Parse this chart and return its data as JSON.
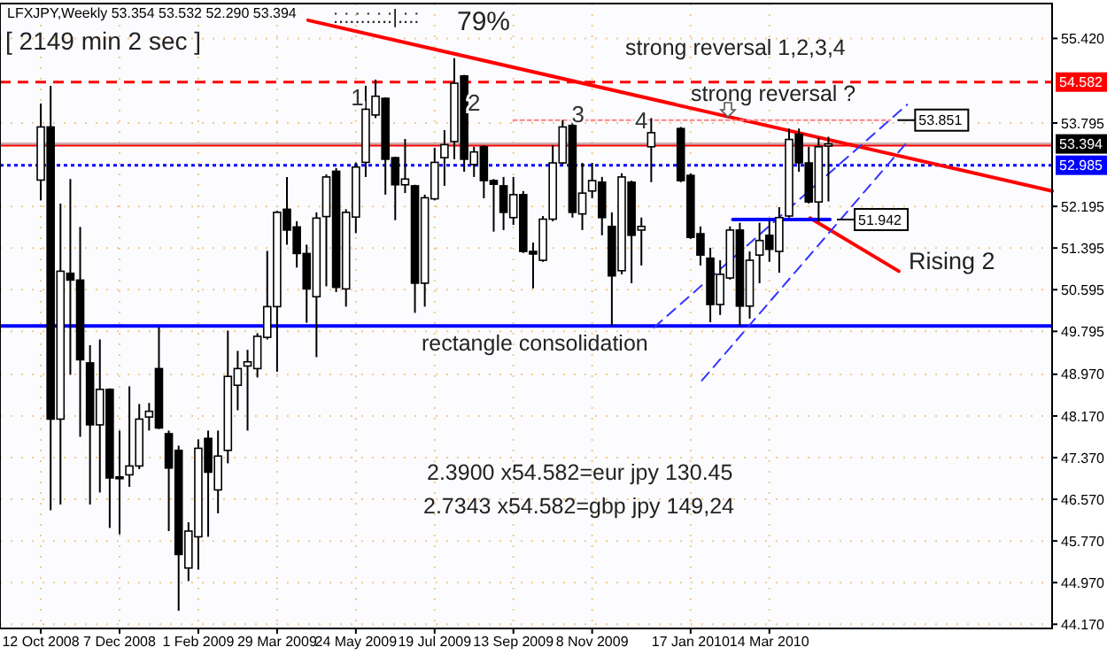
{
  "chart_data": {
    "type": "candlestick",
    "title": "LFXJPY,Weekly  53.354 53.532 52.290 53.394",
    "x": [
      "2008-10-12",
      "2008-10-19",
      "2008-10-26",
      "2008-11-02",
      "2008-11-09",
      "2008-11-16",
      "2008-11-23",
      "2008-11-30",
      "2008-12-07",
      "2008-12-14",
      "2008-12-21",
      "2008-12-28",
      "2009-01-04",
      "2009-01-11",
      "2009-01-18",
      "2009-01-25",
      "2009-02-01",
      "2009-02-08",
      "2009-02-15",
      "2009-02-22",
      "2009-03-01",
      "2009-03-08",
      "2009-03-15",
      "2009-03-22",
      "2009-03-29",
      "2009-04-05",
      "2009-04-12",
      "2009-04-19",
      "2009-04-26",
      "2009-05-03",
      "2009-05-10",
      "2009-05-17",
      "2009-05-24",
      "2009-05-31",
      "2009-06-07",
      "2009-06-14",
      "2009-06-21",
      "2009-06-28",
      "2009-07-05",
      "2009-07-12",
      "2009-07-19",
      "2009-07-26",
      "2009-08-02",
      "2009-08-09",
      "2009-08-16",
      "2009-08-23",
      "2009-08-30",
      "2009-09-06",
      "2009-09-13",
      "2009-09-20",
      "2009-09-27",
      "2009-10-04",
      "2009-10-11",
      "2009-10-18",
      "2009-10-25",
      "2009-11-01",
      "2009-11-08",
      "2009-11-15",
      "2009-11-22",
      "2009-11-29",
      "2009-12-06",
      "2009-12-13",
      "2009-12-20",
      "2010-01-10",
      "2010-01-17",
      "2010-01-24",
      "2010-01-31",
      "2010-02-07",
      "2010-02-14",
      "2010-02-21",
      "2010-02-28",
      "2010-03-07",
      "2010-03-14",
      "2010-03-21",
      "2010-03-28",
      "2010-04-04",
      "2010-04-11",
      "2010-04-18",
      "2010-04-25"
    ],
    "ohlc": [
      [
        52.7,
        54.17,
        52.31,
        53.72
      ],
      [
        53.72,
        54.51,
        46.36,
        48.11
      ],
      [
        48.11,
        52.25,
        46.47,
        50.95
      ],
      [
        50.91,
        52.72,
        48.96,
        50.78
      ],
      [
        50.78,
        51.8,
        47.77,
        49.25
      ],
      [
        49.19,
        49.53,
        46.47,
        48.0
      ],
      [
        48.0,
        49.64,
        46.7,
        48.68
      ],
      [
        48.68,
        48.7,
        46.02,
        46.98
      ],
      [
        47.0,
        47.89,
        45.9,
        46.98
      ],
      [
        47.04,
        48.74,
        46.81,
        47.21
      ],
      [
        47.21,
        48.4,
        47.15,
        48.11
      ],
      [
        48.15,
        48.42,
        47.89,
        48.26
      ],
      [
        49.08,
        49.87,
        47.92,
        47.94
      ],
      [
        47.83,
        47.89,
        45.96,
        47.17
      ],
      [
        47.51,
        47.6,
        44.43,
        45.51
      ],
      [
        45.25,
        46.13,
        45.0,
        45.96
      ],
      [
        45.85,
        47.72,
        45.22,
        47.55
      ],
      [
        47.74,
        47.89,
        45.85,
        47.09
      ],
      [
        46.75,
        47.89,
        46.3,
        47.4
      ],
      [
        47.51,
        49.81,
        47.26,
        48.93
      ],
      [
        48.76,
        49.42,
        48.28,
        49.08
      ],
      [
        49.13,
        49.44,
        47.89,
        49.21
      ],
      [
        49.08,
        49.76,
        48.91,
        49.7
      ],
      [
        49.68,
        51.34,
        49.64,
        50.27
      ],
      [
        50.27,
        52.11,
        49.02,
        52.08
      ],
      [
        52.14,
        52.76,
        51.46,
        51.74
      ],
      [
        51.8,
        51.91,
        51.02,
        51.29
      ],
      [
        51.29,
        51.46,
        49.96,
        50.61
      ],
      [
        50.46,
        52.08,
        49.3,
        51.97
      ],
      [
        52.0,
        52.81,
        50.66,
        52.76
      ],
      [
        52.87,
        52.93,
        50.55,
        50.64
      ],
      [
        50.61,
        52.14,
        50.27,
        52.08
      ],
      [
        51.99,
        53.04,
        51.68,
        52.95
      ],
      [
        53.04,
        54.51,
        52.76,
        54.06
      ],
      [
        53.95,
        54.63,
        53.89,
        54.31
      ],
      [
        54.27,
        54.29,
        52.42,
        53.1
      ],
      [
        53.13,
        53.15,
        51.93,
        52.61
      ],
      [
        52.61,
        53.49,
        52.45,
        52.72
      ],
      [
        52.59,
        52.61,
        50.15,
        50.72
      ],
      [
        50.72,
        52.42,
        50.27,
        52.36
      ],
      [
        52.34,
        53.32,
        52.31,
        53.04
      ],
      [
        53.13,
        53.66,
        52.59,
        53.38
      ],
      [
        53.44,
        55.04,
        53.1,
        54.56
      ],
      [
        54.7,
        54.72,
        52.86,
        53.1
      ],
      [
        53.0,
        53.34,
        52.76,
        53.24
      ],
      [
        53.34,
        53.37,
        52.35,
        52.69
      ],
      [
        52.69,
        52.72,
        51.71,
        52.62
      ],
      [
        52.59,
        52.76,
        51.74,
        52.08
      ],
      [
        51.98,
        52.76,
        51.84,
        52.42
      ],
      [
        52.42,
        52.49,
        51.3,
        51.33
      ],
      [
        51.33,
        51.5,
        50.62,
        51.28
      ],
      [
        51.16,
        52.01,
        51.13,
        51.95
      ],
      [
        51.95,
        53.37,
        51.91,
        53.03
      ],
      [
        53.03,
        53.85,
        53.0,
        53.72
      ],
      [
        53.75,
        53.85,
        51.98,
        52.08
      ],
      [
        52.05,
        53.03,
        51.74,
        52.45
      ],
      [
        52.49,
        53.03,
        52.35,
        52.69
      ],
      [
        52.66,
        52.76,
        51.64,
        51.98
      ],
      [
        51.81,
        52.08,
        49.9,
        50.86
      ],
      [
        50.96,
        52.83,
        50.89,
        52.76
      ],
      [
        52.66,
        52.69,
        50.72,
        51.64
      ],
      [
        51.74,
        51.98,
        51.06,
        51.81
      ],
      [
        53.34,
        53.89,
        52.66,
        53.61
      ],
      [
        53.69,
        53.72,
        52.66,
        52.69
      ],
      [
        52.79,
        52.83,
        51.57,
        51.6
      ],
      [
        51.67,
        51.81,
        51.06,
        51.26
      ],
      [
        51.2,
        51.4,
        49.97,
        50.31
      ],
      [
        50.31,
        51.16,
        50.11,
        50.89
      ],
      [
        50.82,
        51.81,
        50.79,
        51.74
      ],
      [
        51.74,
        51.88,
        49.9,
        50.28
      ],
      [
        50.28,
        51.33,
        50.04,
        51.16
      ],
      [
        51.26,
        51.88,
        50.72,
        51.54
      ],
      [
        51.64,
        51.91,
        51.13,
        51.37
      ],
      [
        51.33,
        52.18,
        50.92,
        51.98
      ],
      [
        52.01,
        53.69,
        51.98,
        53.48
      ],
      [
        53.58,
        53.69,
        52.86,
        53.03
      ],
      [
        53.03,
        53.34,
        52.25,
        52.28
      ],
      [
        52.28,
        53.51,
        51.91,
        53.34
      ],
      [
        53.354,
        53.532,
        52.29,
        53.394
      ]
    ],
    "series": [
      {
        "type": "line",
        "color": "#ff0000",
        "x": [
          "2009-04-20",
          "2010-10-01"
        ],
        "values": [
          55.77,
          52.49
        ]
      },
      {
        "type": "line",
        "color": "#ff0000",
        "x": [
          "2010-04-12",
          "2010-06-14"
        ],
        "values": [
          51.97,
          50.95
        ]
      },
      {
        "type": "line",
        "color": "#3333ff",
        "line_style": "dashed",
        "x": [
          "2009-12-22",
          "2010-06-20"
        ],
        "values": [
          49.87,
          54.15
        ]
      },
      {
        "type": "line",
        "color": "#3333ff",
        "line_style": "dashed",
        "x": [
          "2010-01-25",
          "2010-06-20"
        ],
        "values": [
          48.85,
          53.43
        ]
      },
      {
        "type": "line",
        "color": "#0000ff",
        "x": [
          "2010-02-16",
          "2010-04-26"
        ],
        "values": [
          51.942,
          51.942
        ]
      },
      {
        "type": "line",
        "color": "#ff8080",
        "line_style": "dotted",
        "x": [
          "2009-09-13",
          "2010-06-08"
        ],
        "values": [
          53.851,
          53.851
        ]
      }
    ],
    "ref_lines": [
      {
        "axis": "y",
        "value": 54.582,
        "label": "54.582",
        "color": "#ff0000",
        "line_style": "dashed"
      },
      {
        "axis": "y",
        "value": 53.38,
        "color": "#ff0000",
        "line_style": "solid"
      },
      {
        "axis": "y",
        "value": 53.394,
        "label": "53.394",
        "color": "#c0c0c0",
        "line_style": "solid"
      },
      {
        "axis": "y",
        "value": 52.985,
        "label": "52.985",
        "color": "#0000ff",
        "line_style": "dotted"
      },
      {
        "axis": "y",
        "value": 49.9,
        "color": "#0000ff",
        "line_style": "solid"
      }
    ],
    "annotations": [
      ":.:.:.:.:.:|.:.:",
      "79%",
      "[ 2149 min 2 sec ]",
      "strong reversal 1,2,3,4",
      "strong reversal ?",
      "rectangle consolidation",
      "Rising 2",
      "2.3900 x54.582=eur jpy 130.45",
      "2.7343 x54.582=gbp jpy 149,24",
      {
        "text": "1",
        "x": "2009-05-25",
        "y": 54.29
      },
      {
        "text": "2",
        "x": "2009-08-16",
        "y": 54.19
      },
      {
        "text": "3",
        "x": "2009-10-29",
        "y": 53.97
      },
      {
        "text": "4",
        "x": "2009-12-13",
        "y": 53.85
      },
      {
        "text": "51.942",
        "x": "2010-04-26",
        "y": 51.942
      },
      {
        "text": "53.851",
        "x": "2010-06-08",
        "y": 53.851
      }
    ],
    "xlim": [
      "2008-09-13",
      "2010-10-01"
    ],
    "xticks": [
      {
        "value": "2008-10-12",
        "label": "12 Oct 2008"
      },
      {
        "value": "2008-12-07",
        "label": "7 Dec 2008"
      },
      {
        "value": "2009-02-01",
        "label": "1 Feb 2009"
      },
      {
        "value": "2009-03-29",
        "label": "29 Mar 2009"
      },
      {
        "value": "2009-05-24",
        "label": "24 May 2009"
      },
      {
        "value": "2009-07-19",
        "label": "19 Jul 2009"
      },
      {
        "value": "2009-09-13",
        "label": "13 Sep 2009"
      },
      {
        "value": "2009-11-08",
        "label": "8 Nov 2009"
      },
      {
        "value": "2010-01-17",
        "label": "17 Jan 2010"
      },
      {
        "value": "2010-03-14",
        "label": "14 Mar 2010"
      }
    ],
    "ylim": [
      44.09,
      56.09
    ],
    "yticks": [
      {
        "value": 44.17,
        "label": "44.170"
      },
      {
        "value": 44.97,
        "label": "44.970"
      },
      {
        "value": 45.77,
        "label": "45.770"
      },
      {
        "value": 46.57,
        "label": "46.570"
      },
      {
        "value": 47.37,
        "label": "47.370"
      },
      {
        "value": 48.17,
        "label": "48.170"
      },
      {
        "value": 48.97,
        "label": "48.970"
      },
      49.795,
      50.595,
      51.395,
      52.195,
      53.795,
      {
        "value": 55.42,
        "label": "55.420"
      }
    ],
    "grid": true
  }
}
